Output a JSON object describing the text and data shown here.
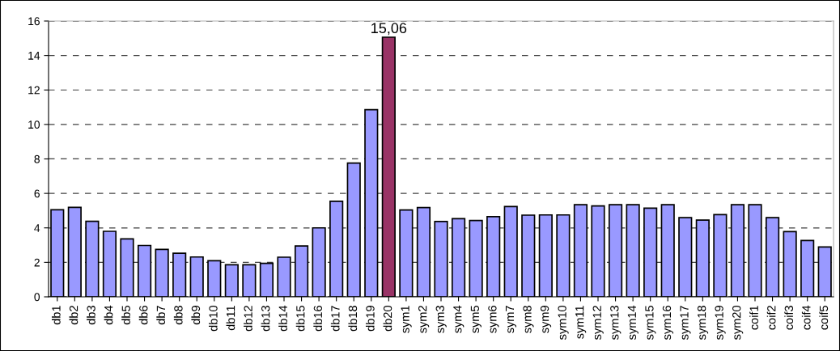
{
  "chart_data": {
    "type": "bar",
    "categories": [
      "db1",
      "db2",
      "db3",
      "db4",
      "db5",
      "db6",
      "db7",
      "db8",
      "db9",
      "db10",
      "db11",
      "db12",
      "db13",
      "db14",
      "db15",
      "db16",
      "db17",
      "db18",
      "db19",
      "db20",
      "sym1",
      "sym2",
      "sym3",
      "sym4",
      "sym5",
      "sym6",
      "sym7",
      "sym8",
      "sym9",
      "sym10",
      "sym11",
      "sym12",
      "sym13",
      "sym14",
      "sym15",
      "sym16",
      "sym17",
      "sym18",
      "sym19",
      "sym20",
      "coif1",
      "coif2",
      "coif3",
      "coif4",
      "coif5"
    ],
    "values": [
      5.05,
      5.19,
      4.38,
      3.8,
      3.36,
      2.98,
      2.75,
      2.53,
      2.31,
      2.09,
      1.86,
      1.86,
      1.94,
      2.3,
      2.95,
      4.0,
      5.54,
      7.76,
      10.86,
      15.06,
      5.04,
      5.18,
      4.37,
      4.53,
      4.43,
      4.65,
      5.24,
      4.74,
      4.75,
      4.75,
      5.34,
      5.27,
      5.34,
      5.34,
      5.14,
      5.34,
      4.59,
      4.45,
      4.77,
      5.34,
      5.34,
      4.59,
      3.78,
      3.27,
      2.89
    ],
    "colors": [
      "#9999ff",
      "#9999ff",
      "#9999ff",
      "#9999ff",
      "#9999ff",
      "#9999ff",
      "#9999ff",
      "#9999ff",
      "#9999ff",
      "#9999ff",
      "#9999ff",
      "#9999ff",
      "#9999ff",
      "#9999ff",
      "#9999ff",
      "#9999ff",
      "#9999ff",
      "#9999ff",
      "#9999ff",
      "#993366",
      "#9999ff",
      "#9999ff",
      "#9999ff",
      "#9999ff",
      "#9999ff",
      "#9999ff",
      "#9999ff",
      "#9999ff",
      "#9999ff",
      "#9999ff",
      "#9999ff",
      "#9999ff",
      "#9999ff",
      "#9999ff",
      "#9999ff",
      "#9999ff",
      "#9999ff",
      "#9999ff",
      "#9999ff",
      "#9999ff",
      "#9999ff",
      "#9999ff",
      "#9999ff",
      "#9999ff",
      "#9999ff"
    ],
    "value_labels": [
      null,
      null,
      null,
      null,
      null,
      null,
      null,
      null,
      null,
      null,
      null,
      null,
      null,
      null,
      null,
      null,
      null,
      null,
      null,
      "15,06",
      null,
      null,
      null,
      null,
      null,
      null,
      null,
      null,
      null,
      null,
      null,
      null,
      null,
      null,
      null,
      null,
      null,
      null,
      null,
      null,
      null,
      null,
      null,
      null,
      null
    ],
    "ylim": [
      0,
      16
    ],
    "yticks": [
      0,
      2,
      4,
      6,
      8,
      10,
      12,
      14,
      16
    ],
    "grid": "y"
  }
}
